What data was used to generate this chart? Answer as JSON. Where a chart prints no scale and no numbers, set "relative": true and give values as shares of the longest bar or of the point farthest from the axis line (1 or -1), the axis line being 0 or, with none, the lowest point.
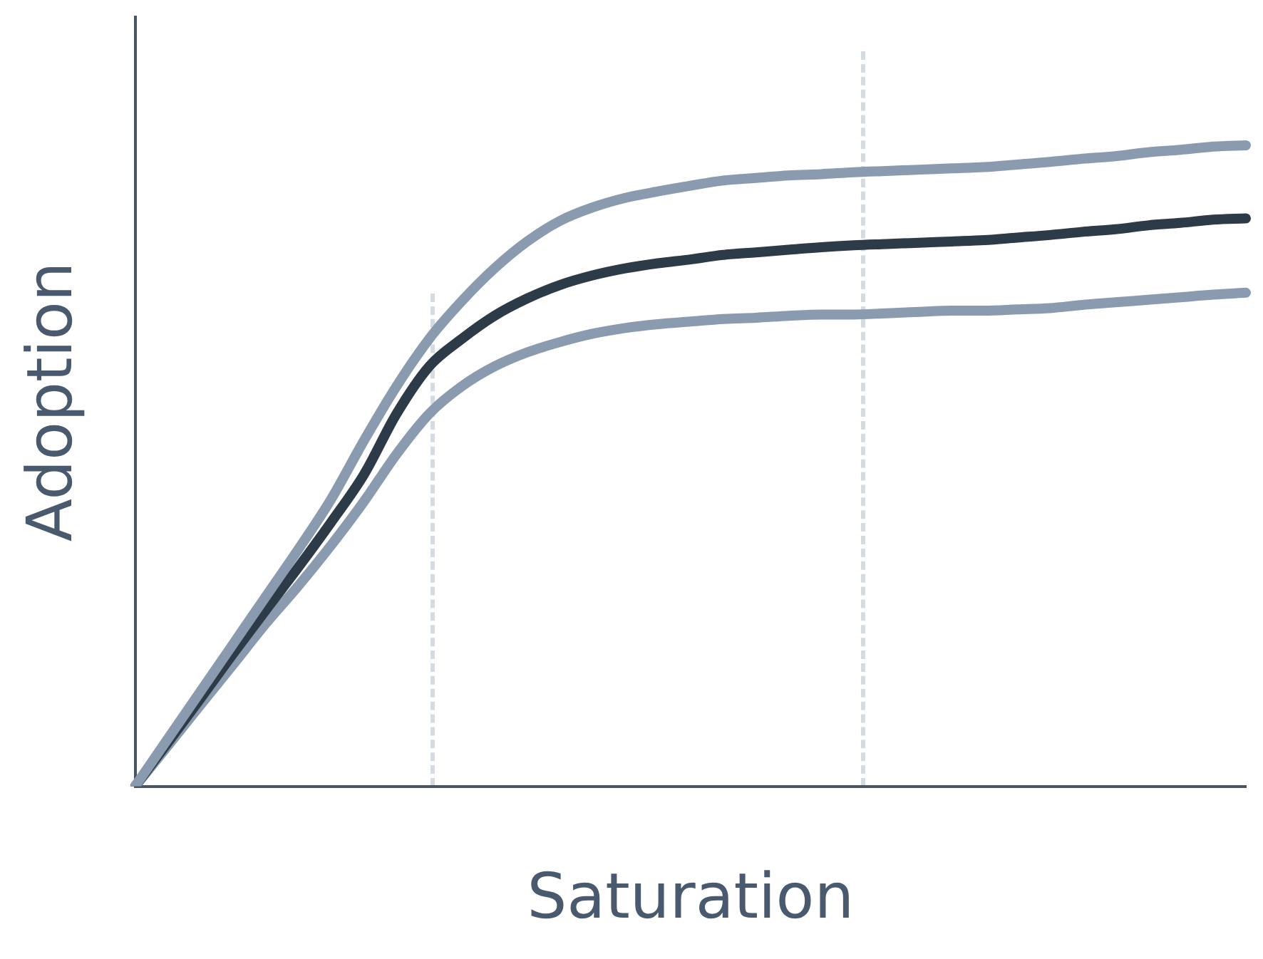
{
  "chart_data": {
    "type": "line",
    "relative": true,
    "xlabel": "Saturation",
    "ylabel": "Adoption",
    "grid": false,
    "legend": false,
    "marker": "none",
    "line_style": "solid",
    "categories": [
      null,
      null,
      null,
      null,
      null,
      null,
      null,
      null,
      null,
      null,
      null,
      null,
      null,
      null,
      null,
      null,
      null,
      null,
      null,
      null,
      null,
      null,
      null,
      null,
      null,
      null,
      null,
      null,
      null,
      null,
      null,
      null,
      null,
      null,
      null
    ],
    "series": [
      {
        "color": "#8a9bb0",
        "values": [
          0,
          0.074,
          0.148,
          0.222,
          0.296,
          0.37,
          0.448,
          0.539,
          0.624,
          0.698,
          0.757,
          0.808,
          0.85,
          0.882,
          0.903,
          0.918,
          0.928,
          0.937,
          0.945,
          0.949,
          0.953,
          0.955,
          0.958,
          0.96,
          0.962,
          0.964,
          0.966,
          0.97,
          0.974,
          0.979,
          0.983,
          0.989,
          0.993,
          0.998,
          1
        ]
      },
      {
        "color": "#2d3a48",
        "values": [
          0,
          0.068,
          0.137,
          0.207,
          0.275,
          0.342,
          0.412,
          0.486,
          0.581,
          0.655,
          0.698,
          0.734,
          0.761,
          0.782,
          0.797,
          0.808,
          0.816,
          0.822,
          0.829,
          0.833,
          0.837,
          0.841,
          0.844,
          0.846,
          0.848,
          0.85,
          0.852,
          0.856,
          0.86,
          0.865,
          0.869,
          0.875,
          0.879,
          0.884,
          0.886
        ]
      },
      {
        "color": "#8a9bb0",
        "values": [
          0,
          0.063,
          0.127,
          0.19,
          0.254,
          0.313,
          0.376,
          0.444,
          0.518,
          0.581,
          0.624,
          0.655,
          0.677,
          0.693,
          0.706,
          0.715,
          0.721,
          0.725,
          0.729,
          0.731,
          0.734,
          0.736,
          0.736,
          0.738,
          0.74,
          0.742,
          0.742,
          0.744,
          0.746,
          0.751,
          0.755,
          0.759,
          0.763,
          0.767,
          0.77
        ]
      }
    ]
  }
}
